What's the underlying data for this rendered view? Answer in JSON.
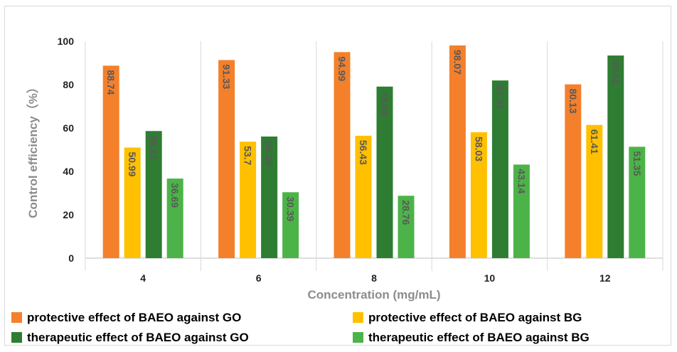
{
  "chart_data": {
    "type": "bar",
    "xlabel": "Concentration (mg/mL)",
    "ylabel": "Control efficiency（%）",
    "ylim": [
      0,
      100
    ],
    "yticks": [
      "0",
      "20",
      "40",
      "60",
      "80",
      "100"
    ],
    "categories": [
      "4",
      "6",
      "8",
      "10",
      "12"
    ],
    "grid": "vertical category separators",
    "legend_position": "bottom",
    "series": [
      {
        "name": "protective effect of BAEO against GO",
        "color": "#f4802c",
        "values": [
          88.74,
          91.33,
          94.99,
          98.07,
          80.13
        ],
        "labels": [
          "88.74",
          "91.33",
          "94.99",
          "98.07",
          "80.13"
        ]
      },
      {
        "name": "protective effect of BAEO against BG",
        "color": "#ffc000",
        "values": [
          50.99,
          53.7,
          56.43,
          58.03,
          61.41
        ],
        "labels": [
          "50.99",
          "53.7",
          "56.43",
          "58.03",
          "61.41"
        ]
      },
      {
        "name": "therapeutic effect of BAEO against GO",
        "color": "#2e7d32",
        "values": [
          58.61,
          56.06,
          79.09,
          81.91,
          93.42
        ],
        "labels": [
          "58.61",
          "56.06",
          "79.09",
          "81.91",
          "93.42"
        ]
      },
      {
        "name": "therapeutic effect of BAEO against BG",
        "color": "#4cb348",
        "values": [
          36.69,
          30.39,
          28.76,
          43.14,
          51.35
        ],
        "labels": [
          "36.69",
          "30.39",
          "28.76",
          "43.14",
          "51.35"
        ]
      }
    ]
  }
}
